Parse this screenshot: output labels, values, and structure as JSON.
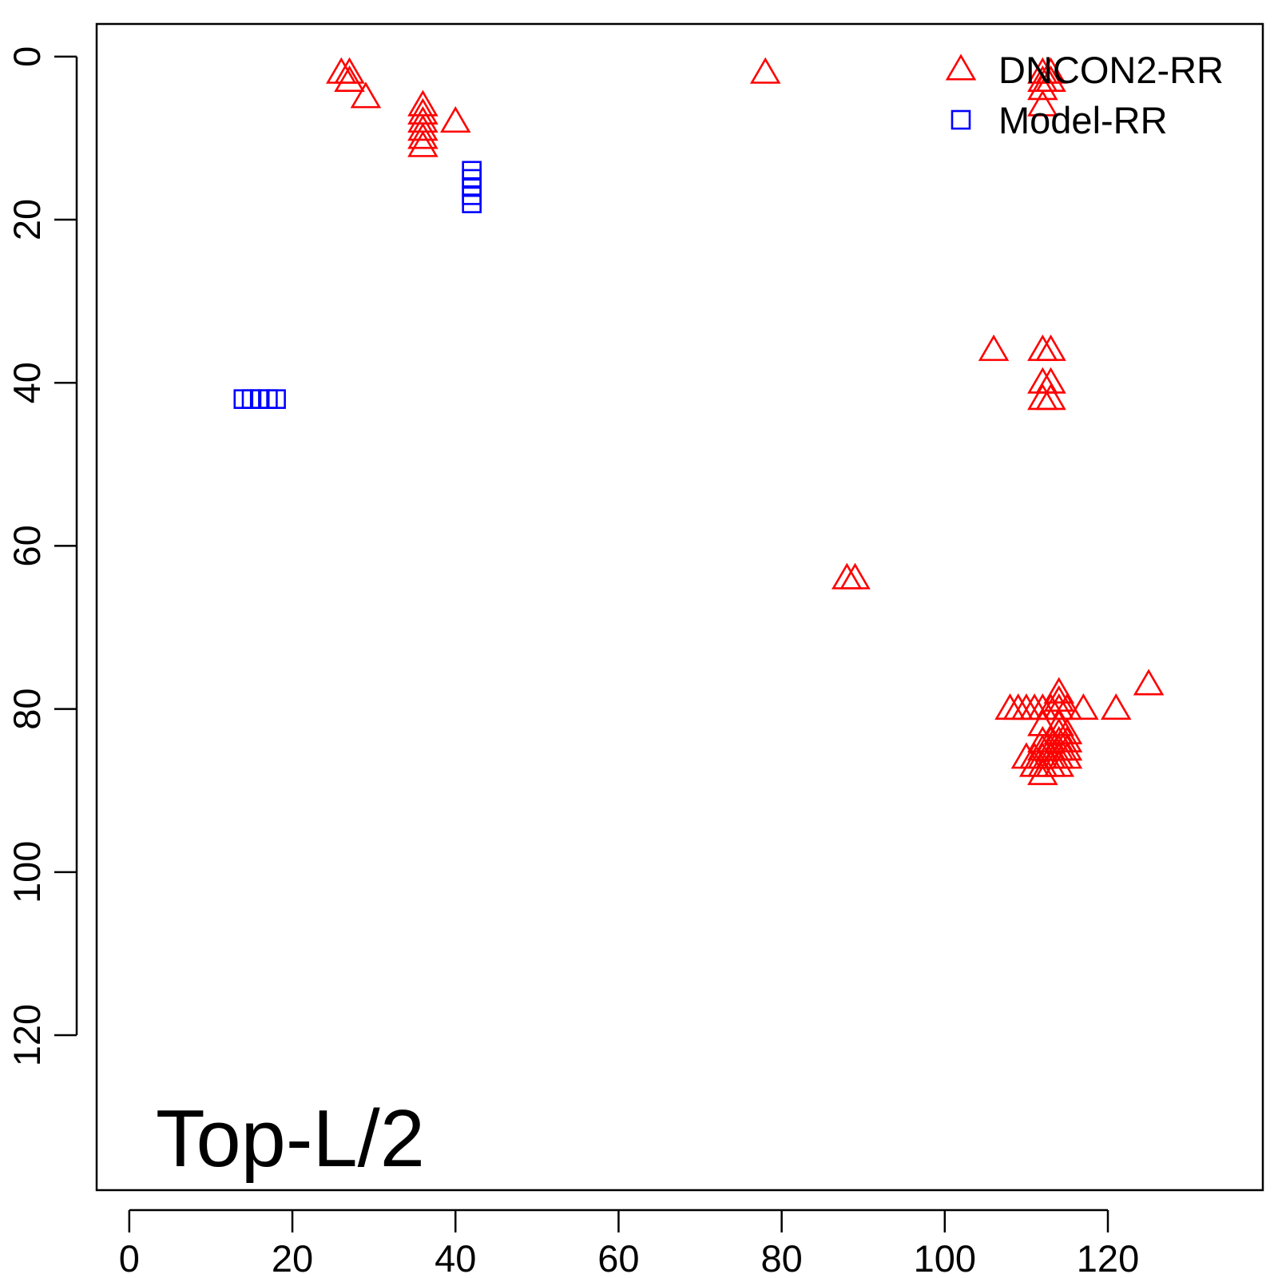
{
  "chart_data": {
    "type": "scatter",
    "title": "",
    "xlabel": "",
    "ylabel": "",
    "annotation": "Top-L/2",
    "xlim": [
      -4,
      139
    ],
    "ylim": [
      139,
      -4
    ],
    "y_inverted": true,
    "x_ticks": [
      0,
      20,
      40,
      60,
      80,
      100,
      120
    ],
    "x_tick_labels": [
      "0",
      "20",
      "40",
      "60",
      "80",
      "100",
      "120"
    ],
    "y_ticks": [
      0,
      20,
      40,
      60,
      80,
      100,
      120
    ],
    "y_tick_labels": [
      "0",
      "20",
      "40",
      "60",
      "80",
      "100",
      "120"
    ],
    "grid": false,
    "legend": {
      "position": "top-right"
    },
    "series": [
      {
        "name": "DNCON2-RR",
        "marker": "triangle-open",
        "color": "#ff0000",
        "points": [
          [
            26,
            2
          ],
          [
            27,
            2
          ],
          [
            27,
            3
          ],
          [
            29,
            5
          ],
          [
            36,
            6
          ],
          [
            36,
            7
          ],
          [
            36,
            8
          ],
          [
            36,
            9
          ],
          [
            36,
            10
          ],
          [
            36,
            11
          ],
          [
            40,
            8
          ],
          [
            78,
            2
          ],
          [
            112,
            2
          ],
          [
            113,
            2
          ],
          [
            112,
            3
          ],
          [
            113,
            3
          ],
          [
            112,
            4
          ],
          [
            112,
            6
          ],
          [
            106,
            36
          ],
          [
            112,
            36
          ],
          [
            113,
            36
          ],
          [
            112,
            40
          ],
          [
            113,
            40
          ],
          [
            112,
            42
          ],
          [
            113,
            42
          ],
          [
            88,
            64
          ],
          [
            89,
            64
          ],
          [
            125,
            77
          ],
          [
            108,
            80
          ],
          [
            109,
            80
          ],
          [
            110,
            80
          ],
          [
            111,
            80
          ],
          [
            112,
            80
          ],
          [
            113,
            80
          ],
          [
            114,
            78
          ],
          [
            114,
            79
          ],
          [
            114,
            80
          ],
          [
            115,
            80
          ],
          [
            117,
            80
          ],
          [
            121,
            80
          ],
          [
            112,
            82
          ],
          [
            114,
            82
          ],
          [
            114,
            83
          ],
          [
            115,
            83
          ],
          [
            114,
            84
          ],
          [
            115,
            84
          ],
          [
            112,
            84
          ],
          [
            113,
            84
          ],
          [
            112,
            85
          ],
          [
            113,
            85
          ],
          [
            114,
            85
          ],
          [
            115,
            85
          ],
          [
            110,
            86
          ],
          [
            111,
            86
          ],
          [
            112,
            86
          ],
          [
            113,
            86
          ],
          [
            114,
            86
          ],
          [
            115,
            86
          ],
          [
            111,
            87
          ],
          [
            112,
            87
          ],
          [
            113,
            87
          ],
          [
            114,
            87
          ],
          [
            112,
            88
          ]
        ]
      },
      {
        "name": "Model-RR",
        "marker": "square-open",
        "color": "#0000ff",
        "points": [
          [
            42,
            14
          ],
          [
            42,
            15
          ],
          [
            42,
            16
          ],
          [
            42,
            17
          ],
          [
            42,
            18
          ],
          [
            14,
            42
          ],
          [
            15,
            42
          ],
          [
            16,
            42
          ],
          [
            17,
            42
          ],
          [
            18,
            42
          ]
        ]
      }
    ]
  }
}
